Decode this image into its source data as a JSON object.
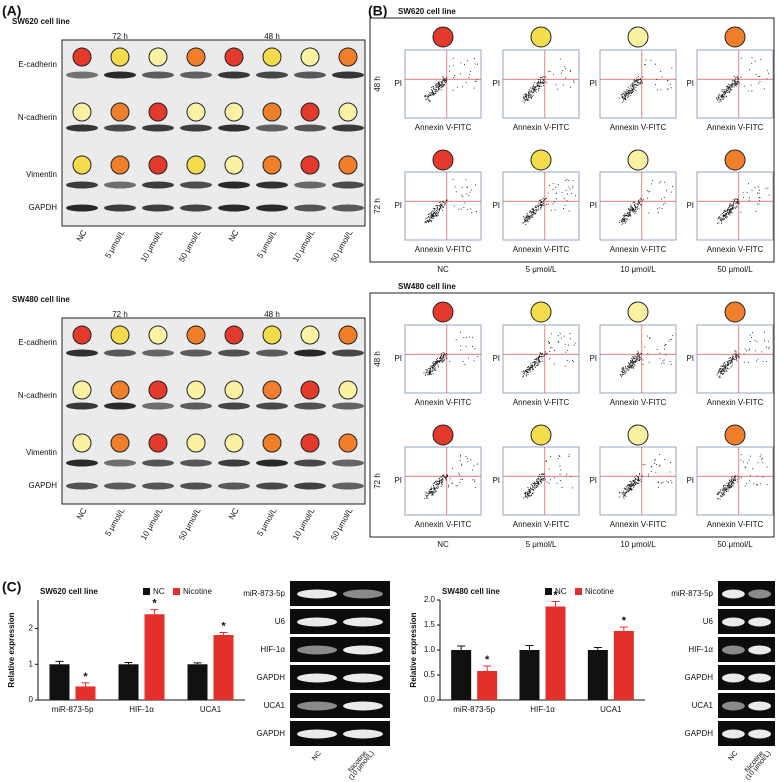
{
  "panel_labels": [
    "(A)",
    "(B)",
    "(C)"
  ],
  "blots": [
    {
      "title": "SW620 cell line",
      "times": [
        "72 h",
        "48 h"
      ],
      "proteins": [
        "E-cadherin",
        "N-cadherin",
        "Vimentin",
        "GAPDH"
      ],
      "columns": [
        "NC",
        "5 μmol/L",
        "10 μmol/L",
        "50 μmol/L",
        "NC",
        "5 μmol/L",
        "10 μmol/L",
        "50 μmol/L"
      ],
      "circle_colors": [
        [
          "#e33a2c",
          "#f4dc4c",
          "#fbf1a2",
          "#f07e2b",
          "#e33a2c",
          "#f4dc4c",
          "#fbf1a2",
          "#f07e2b"
        ],
        [
          "#fbf1a2",
          "#f07e2b",
          "#e33a2c",
          "#fbf1a2",
          "#fbf1a2",
          "#f07e2b",
          "#e33a2c",
          "#fbf1a2"
        ],
        [
          "#f4dc4c",
          "#f07e2b",
          "#e33a2c",
          "#f4dc4c",
          "#fbf1a2",
          "#f07e2b",
          "#e33a2c",
          "#f07e2b"
        ]
      ]
    },
    {
      "title": "SW480 cell line",
      "times": [
        "72 h",
        "48 h"
      ],
      "proteins": [
        "E-cadherin",
        "N-cadherin",
        "Vimentin",
        "GAPDH"
      ],
      "columns": [
        "NC",
        "5 μmol/L",
        "10 μmol/L",
        "50 μmol/L",
        "NC",
        "5 μmol/L",
        "10 μmol/L",
        "50 μmol/L"
      ],
      "circle_colors": [
        [
          "#e33a2c",
          "#f4dc4c",
          "#fbf1a2",
          "#f07e2b",
          "#e33a2c",
          "#f4dc4c",
          "#fbf1a2",
          "#f07e2b"
        ],
        [
          "#fbf1a2",
          "#f07e2b",
          "#e33a2c",
          "#fbf1a2",
          "#fbf1a2",
          "#f07e2b",
          "#e33a2c",
          "#fbf1a2"
        ],
        [
          "#fbf1a2",
          "#f07e2b",
          "#e33a2c",
          "#fbf1a2",
          "#fbf1a2",
          "#f07e2b",
          "#e33a2c",
          "#f07e2b"
        ]
      ]
    }
  ],
  "flow": [
    {
      "title": "SW620 cell line",
      "times": [
        "48 h",
        "72 h"
      ],
      "x_label": "Annexin V-FITC",
      "y_label": "PI",
      "columns": [
        "NC",
        "5 μmol/L",
        "10 μmol/L",
        "50 μmol/L"
      ],
      "circle_colors": [
        [
          "#e33a2c",
          "#f4dc4c",
          "#fbf1a2",
          "#f07e2b"
        ],
        [
          "#e33a2c",
          "#f4dc4c",
          "#fbf1a2",
          "#f07e2b"
        ]
      ]
    },
    {
      "title": "SW480 cell line",
      "times": [
        "48 h",
        "72 h"
      ],
      "x_label": "Annexin V-FITC",
      "y_label": "PI",
      "columns": [
        "NC",
        "5 μmol/L",
        "10 μmol/L",
        "50 μmol/L"
      ],
      "circle_colors": [
        [
          "#e33a2c",
          "#f4dc4c",
          "#fbf1a2",
          "#f07e2b"
        ],
        [
          "#e33a2c",
          "#f4dc4c",
          "#fbf1a2",
          "#f07e2b"
        ]
      ]
    }
  ],
  "chart_data": [
    {
      "type": "bar",
      "title": "SW620 cell line",
      "y_label": "Relative expression",
      "categories": [
        "miR-873-5p",
        "HIF-1α",
        "UCA1"
      ],
      "series": [
        {
          "name": "NC",
          "color": "#111111",
          "values": [
            1.0,
            1.0,
            1.0
          ],
          "errors": [
            0.08,
            0.05,
            0.04
          ]
        },
        {
          "name": "Nicotine",
          "color": "#e3302b",
          "values": [
            0.38,
            2.4,
            1.82
          ],
          "errors": [
            0.1,
            0.13,
            0.07
          ],
          "annotations": [
            "*",
            "*",
            "*"
          ]
        }
      ],
      "ylim": [
        0,
        2.8
      ],
      "yticks": [
        0,
        1,
        2
      ]
    },
    {
      "type": "bar",
      "title": "SW480 cell line",
      "y_label": "Relative expression",
      "categories": [
        "miR-873-5p",
        "HIF-1α",
        "UCA1"
      ],
      "series": [
        {
          "name": "NC",
          "color": "#111111",
          "values": [
            1.0,
            1.0,
            1.0
          ],
          "errors": [
            0.08,
            0.09,
            0.05
          ]
        },
        {
          "name": "Nicotine",
          "color": "#e3302b",
          "values": [
            0.58,
            1.87,
            1.38
          ],
          "errors": [
            0.1,
            0.1,
            0.08
          ],
          "annotations": [
            "*",
            "*",
            "*"
          ]
        }
      ],
      "ylim": [
        0,
        2.0
      ],
      "yticks": [
        {
          "value": 0,
          "label": "0.0"
        },
        0.5,
        {
          "value": 1,
          "label": "1.0"
        },
        1.5,
        {
          "value": 2,
          "label": "2.0"
        }
      ]
    }
  ],
  "gels": [
    {
      "rows": [
        "miR-873-5p",
        "U6",
        "HIF-1α",
        "GAPDH",
        "UCA1",
        "GAPDH"
      ],
      "lanes": [
        [
          "NC"
        ],
        [
          "Nicotine",
          "(10 μmol/L)"
        ]
      ]
    },
    {
      "rows": [
        "miR-873-5p",
        "U6",
        "HIF-1α",
        "GAPDH",
        "UCA1",
        "GAPDH"
      ],
      "lanes": [
        [
          "NC"
        ],
        [
          "Nicotine",
          "(10 μmol/L)"
        ]
      ]
    }
  ]
}
